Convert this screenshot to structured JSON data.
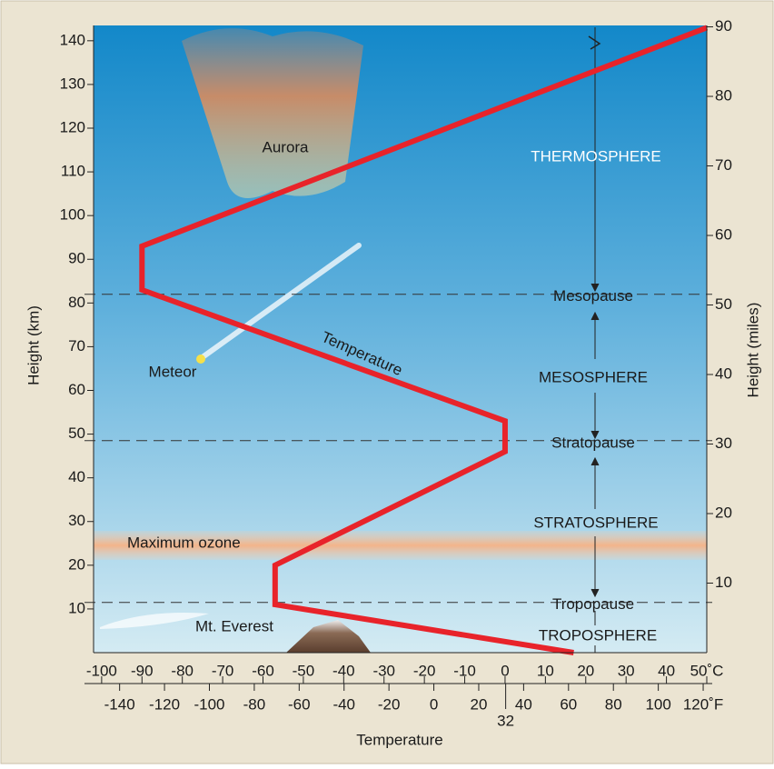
{
  "chart_data": {
    "type": "line",
    "x": [
      17,
      -57,
      -57,
      0,
      0,
      -90,
      -90,
      50
    ],
    "values": [
      0,
      11,
      20,
      46,
      53,
      83,
      93,
      143
    ],
    "color": "#e8232a",
    "xlim": [
      -102,
      50
    ],
    "xticks": [
      -100,
      -90,
      -80,
      -70,
      -60,
      -50,
      -40,
      -30,
      -20,
      -10,
      0,
      10,
      20,
      30,
      40,
      {
        "value": 50,
        "label": "50˚C"
      }
    ],
    "x2lim": [
      -151.6,
      121.6
    ],
    "x2ticks": [
      -140,
      -120,
      -100,
      -80,
      -60,
      -40,
      -20,
      0,
      20,
      40,
      60,
      80,
      100,
      {
        "value": 120,
        "label": "120˚F"
      }
    ],
    "x2_extra_ticks": [
      32
    ],
    "xlabel": "Temperature",
    "ylabel": "Height (km)",
    "ylim": [
      0,
      143.5
    ],
    "yticks": [
      10,
      20,
      30,
      40,
      50,
      60,
      70,
      80,
      90,
      100,
      110,
      120,
      130,
      140
    ],
    "y2label": "Height (miles)",
    "y2lim": [
      0,
      90.2
    ],
    "y2ticks": [
      10,
      20,
      30,
      40,
      50,
      60,
      70,
      80,
      90
    ],
    "boundaries": [
      {
        "label": "Mesopause",
        "value": 82
      },
      {
        "label": "Stratopause",
        "value": 48.5
      },
      {
        "label": "Tropopause",
        "value": 11.5
      }
    ],
    "layers": [
      "THERMOSPHERE",
      "MESOSPHERE",
      "STRATOSPHERE",
      "TROPOSPHERE"
    ],
    "annotations": {
      "aurora": "Aurora",
      "meteor": "Meteor",
      "line": "Temperature",
      "ozone": "Maximum ozone",
      "everest": "Mt. Everest"
    }
  }
}
